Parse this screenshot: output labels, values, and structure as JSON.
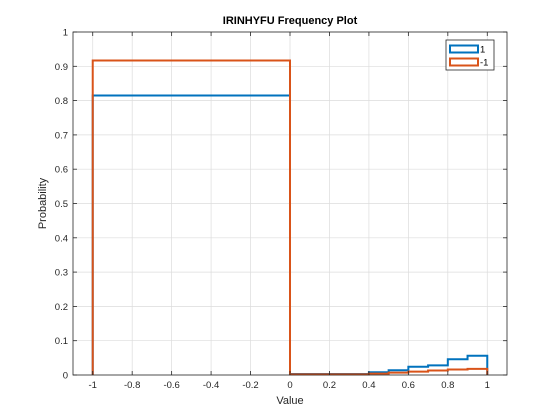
{
  "chart_data": {
    "type": "stairs",
    "title": "IRINHYFU Frequency Plot",
    "xlabel": "Value",
    "ylabel": "Probability",
    "xlim": [
      -1.1,
      1.1
    ],
    "ylim": [
      0,
      1
    ],
    "xticks": [
      -1,
      -0.8,
      -0.6,
      -0.4,
      -0.2,
      0,
      0.2,
      0.4,
      0.6,
      0.8,
      1
    ],
    "xtick_labels": [
      "-1",
      "-0.8",
      "-0.6",
      "-0.4",
      "-0.2",
      "0",
      "0.2",
      "0.4",
      "0.6",
      "0.8",
      "1"
    ],
    "yticks": [
      0,
      0.1,
      0.2,
      0.3,
      0.4,
      0.5,
      0.6,
      0.7,
      0.8,
      0.9,
      1
    ],
    "ytick_labels": [
      "0",
      "0.1",
      "0.2",
      "0.3",
      "0.4",
      "0.5",
      "0.6",
      "0.7",
      "0.8",
      "0.9",
      "1"
    ],
    "grid": true,
    "legend_location": "top-right",
    "series": [
      {
        "name": "1",
        "color": "#0072BD",
        "edges": [
          -1,
          0,
          0.4,
          0.5,
          0.6,
          0.7,
          0.8,
          0.9,
          1
        ],
        "values": [
          0.815,
          0.003,
          0.008,
          0.014,
          0.024,
          0.028,
          0.046,
          0.056
        ]
      },
      {
        "name": "-1",
        "color": "#D95319",
        "edges": [
          -1,
          0,
          0.4,
          0.5,
          0.6,
          0.7,
          0.8,
          0.9,
          1
        ],
        "values": [
          0.917,
          0.002,
          0.004,
          0.007,
          0.01,
          0.013,
          0.016,
          0.018
        ]
      }
    ]
  }
}
